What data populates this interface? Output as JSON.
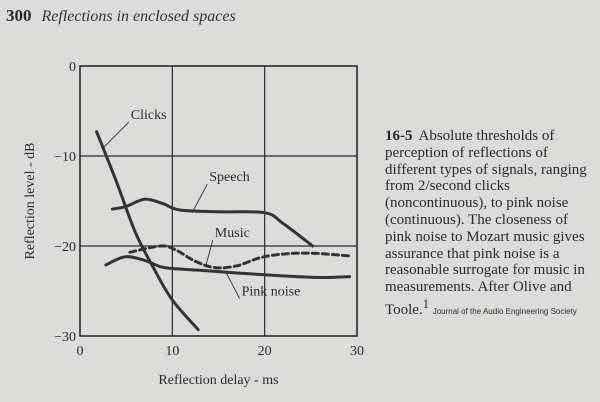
{
  "page": {
    "number": "300",
    "running_title": "Reflections in enclosed spaces"
  },
  "caption": {
    "figure_number": "16-5",
    "text": "Absolute thresholds of perception of reflections of different types of signals, ranging from 2/second clicks (noncontinuous), to pink noise (continuous). The closeness of pink noise to Mozart music gives assurance that pink noise is a reasonable surrogate for music in measurements. After Olive and Toole.",
    "footnote": "1",
    "source": "Journal of the Audio Engineering Society"
  },
  "chart_data": {
    "type": "line",
    "xlabel": "Reflection delay - ms",
    "ylabel": "Reflection level - dB",
    "xlim": [
      0,
      30
    ],
    "ylim": [
      -30,
      0
    ],
    "xticks": [
      "0",
      "10",
      "20",
      "30"
    ],
    "yticks": [
      "0",
      "-10",
      "-20",
      "-30"
    ],
    "grid": true,
    "series": [
      {
        "name": "Clicks",
        "style": "solid",
        "x": [
          1.8,
          4,
          6,
          8,
          10,
          12.8
        ],
        "y": [
          -7.3,
          -13,
          -18.5,
          -22.5,
          -26,
          -29.3
        ]
      },
      {
        "name": "Speech",
        "style": "solid",
        "x": [
          3.5,
          5,
          7,
          9,
          10.8,
          15,
          20,
          22,
          25.2
        ],
        "y": [
          -15.9,
          -15.6,
          -14.8,
          -15.3,
          -16,
          -16.2,
          -16.3,
          -17.5,
          -20
        ]
      },
      {
        "name": "Music",
        "style": "dashed",
        "x": [
          5.4,
          8.7,
          10.3,
          12.5,
          14.6,
          17,
          19.5,
          22,
          25,
          29.2
        ],
        "y": [
          -20.7,
          -20,
          -20.4,
          -21.7,
          -22.4,
          -22.2,
          -21.3,
          -20.9,
          -20.8,
          -21.1
        ]
      },
      {
        "name": "Pink noise",
        "style": "solid",
        "x": [
          2.8,
          4.9,
          7,
          8.7,
          10,
          13,
          17,
          21.7,
          26,
          29.2
        ],
        "y": [
          -22.1,
          -21.2,
          -21.6,
          -22.3,
          -22.5,
          -22.7,
          -23,
          -23.3,
          -23.5,
          -23.4
        ]
      }
    ],
    "annotations": [
      {
        "text": "Clicks",
        "x": 5.5,
        "y": -5.9,
        "point_x": 2.6,
        "point_y": -9
      },
      {
        "text": "Speech",
        "x": 14,
        "y": -12.8,
        "point_x": 12.3,
        "point_y": -16
      },
      {
        "text": "Music",
        "x": 14.6,
        "y": -19,
        "point_x": 13.6,
        "point_y": -22.3
      },
      {
        "text": "Pink noise",
        "x": 17.5,
        "y": -25.5,
        "point_x": 15.8,
        "point_y": -22.9
      }
    ]
  }
}
